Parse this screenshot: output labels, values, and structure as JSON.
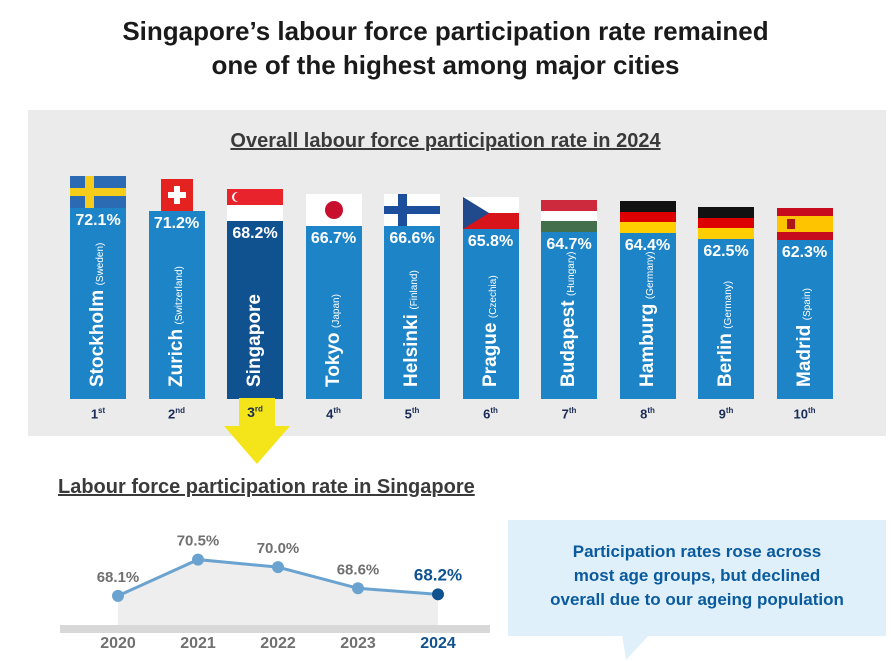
{
  "title_line1": "Singapore’s labour force participation rate remained",
  "title_line2": "one of the highest among major cities",
  "chart_data": [
    {
      "type": "bar",
      "title": "Overall labour force participation rate in 2024",
      "unit": "%",
      "bars": [
        {
          "city": "Stockholm",
          "country": "(Sweden)",
          "value": 72.1,
          "label": "72.1%",
          "rank": "1",
          "suffix": "st",
          "flag": "sweden-flag",
          "highlight": false
        },
        {
          "city": "Zurich",
          "country": "(Switzerland)",
          "value": 71.2,
          "label": "71.2%",
          "rank": "2",
          "suffix": "nd",
          "flag": "switzerland-flag",
          "highlight": false
        },
        {
          "city": "Singapore",
          "country": "",
          "value": 68.2,
          "label": "68.2%",
          "rank": "3",
          "suffix": "rd",
          "flag": "singapore-flag",
          "highlight": true
        },
        {
          "city": "Tokyo",
          "country": "(Japan)",
          "value": 66.7,
          "label": "66.7%",
          "rank": "4",
          "suffix": "th",
          "flag": "japan-flag",
          "highlight": false
        },
        {
          "city": "Helsinki",
          "country": "(Finland)",
          "value": 66.6,
          "label": "66.6%",
          "rank": "5",
          "suffix": "th",
          "flag": "finland-flag",
          "highlight": false
        },
        {
          "city": "Prague",
          "country": "(Czechia)",
          "value": 65.8,
          "label": "65.8%",
          "rank": "6",
          "suffix": "th",
          "flag": "czechia-flag",
          "highlight": false
        },
        {
          "city": "Budapest",
          "country": "(Hungary)",
          "value": 64.7,
          "label": "64.7%",
          "rank": "7",
          "suffix": "th",
          "flag": "hungary-flag",
          "highlight": false
        },
        {
          "city": "Hamburg",
          "country": "(Germany)",
          "value": 64.4,
          "label": "64.4%",
          "rank": "8",
          "suffix": "th",
          "flag": "germany-flag",
          "highlight": false
        },
        {
          "city": "Berlin",
          "country": "(Germany)",
          "value": 62.5,
          "label": "62.5%",
          "rank": "9",
          "suffix": "th",
          "flag": "germany-flag",
          "highlight": false
        },
        {
          "city": "Madrid",
          "country": "(Spain)",
          "value": 62.3,
          "label": "62.3%",
          "rank": "10",
          "suffix": "th",
          "flag": "spain-flag",
          "highlight": false
        }
      ],
      "colors": {
        "bar": "#1e84c8",
        "highlight": "#10528f"
      }
    },
    {
      "type": "line",
      "title": "Labour force participation rate in Singapore",
      "x": [
        "2020",
        "2021",
        "2022",
        "2023",
        "2024"
      ],
      "values": [
        68.1,
        70.5,
        70.0,
        68.6,
        68.2
      ],
      "labels": [
        "68.1%",
        "70.5%",
        "70.0%",
        "68.6%",
        "68.2%"
      ],
      "ylim": [
        66.5,
        71.2
      ],
      "colors": {
        "line": "#6ba3d0",
        "last": "#10528f",
        "fill": "#eeeeee"
      }
    }
  ],
  "callout": {
    "line1": "Participation rates rose across",
    "line2": "most age groups, but declined",
    "line3": "overall due to our ageing population"
  }
}
